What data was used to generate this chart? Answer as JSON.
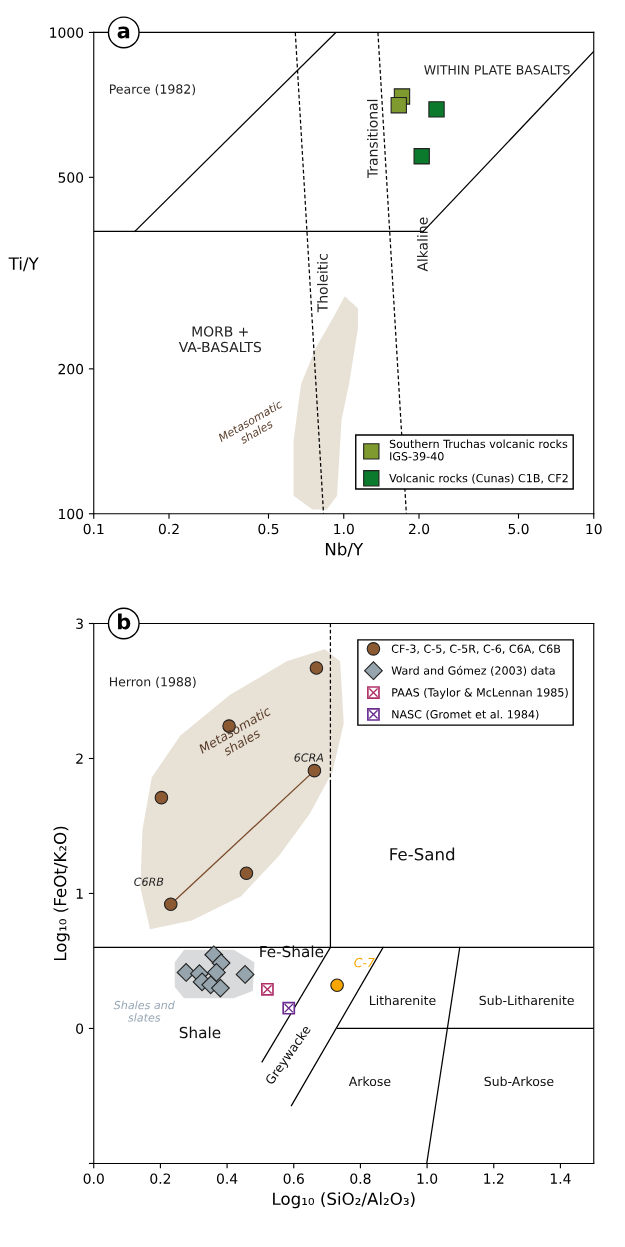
{
  "chart_data": [
    {
      "type": "scatter",
      "title": "a",
      "xlabel": "Nb/Y",
      "ylabel": "Ti/Y",
      "log": "xy",
      "xlim": [
        0.1,
        10
      ],
      "ylim": [
        100,
        1000
      ],
      "xticks": [
        0.1,
        0.2,
        0.5,
        {
          "value": 1,
          "label": "1.0"
        },
        {
          "value": 2,
          "label": "2.0"
        },
        {
          "value": 5,
          "label": "5.0"
        },
        10
      ],
      "yticks": [
        100,
        200,
        500,
        1000
      ],
      "grid": false,
      "legend": "bottom right",
      "annotations": [
        "Pearce (1982)",
        "WITHIN PLATE BASALTS",
        "Transitional",
        "Tholeitic",
        "Alkaline",
        "MORB +\nVA-BASALTS",
        "Metasomatic\nshales"
      ],
      "series": [
        {
          "type": "line",
          "color": "#000000",
          "line_style": "solid",
          "x": [
            0.1,
            2.08
          ],
          "values": [
            386,
            386
          ]
        },
        {
          "type": "line",
          "color": "#000000",
          "line_style": "solid",
          "x": [
            0.146,
            0.93
          ],
          "values": [
            386,
            1000
          ]
        },
        {
          "type": "line",
          "color": "#000000",
          "line_style": "solid",
          "x": [
            2.08,
            10
          ],
          "values": [
            386,
            913
          ]
        },
        {
          "type": "line",
          "color": "#000000",
          "line_style": "dashed",
          "x": [
            0.64,
            0.83
          ],
          "values": [
            1000,
            100
          ]
        },
        {
          "type": "line",
          "color": "#000000",
          "line_style": "dashed",
          "x": [
            1.37,
            1.78
          ],
          "values": [
            1000,
            100
          ]
        },
        {
          "marker": "square",
          "name": "Southern Truchas volcanic rocks\nIGS-39-40",
          "color": "#7f9a2e",
          "x": [
            1.71,
            1.66
          ],
          "values": [
            736,
            706
          ]
        },
        {
          "marker": "square",
          "name": "Volcanic rocks (Cunas) C1B, CF2",
          "color": "#0b7a2c",
          "x": [
            2.35,
            2.05
          ],
          "values": [
            692,
            553
          ]
        }
      ]
    },
    {
      "type": "scatter",
      "title": "b",
      "xlabel": "Log₁₀ (SiO₂/Al₂O₃)",
      "ylabel": "Log₁₀ (FeOt/K₂O)",
      "xlim": [
        0,
        1.5
      ],
      "ylim": [
        -1,
        3
      ],
      "xticks": [
        {
          "value": 0,
          "label": "0.0"
        },
        {
          "value": 0.2,
          "label": "0.2"
        },
        {
          "value": 0.4,
          "label": "0.4"
        },
        {
          "value": 0.6,
          "label": "0.6"
        },
        {
          "value": 0.8,
          "label": "0.8"
        },
        {
          "value": 1,
          "label": "1.0"
        },
        {
          "value": 1.2,
          "label": "1.2"
        },
        {
          "value": 1.4,
          "label": "1.4"
        }
      ],
      "yticks": [
        {
          "value": -1,
          "label": null
        },
        0,
        1,
        2,
        3
      ],
      "grid": false,
      "legend": "top right",
      "annotations": [
        "Herron (1988)",
        "Metasomatic\nshales",
        "6CRA",
        "C6RB",
        "Fe-Shale",
        "Fe-Sand",
        "C-7",
        "Shales and\nslates",
        "Shale",
        "Greywacke",
        "Litharenite",
        "Sub-Litharenite",
        "Arkose",
        "Sub-Arkose"
      ],
      "series": [
        {
          "type": "line",
          "color": "#000000",
          "line_style": "dashed",
          "x": [
            0.71,
            0.71
          ],
          "values": [
            3,
            1.83
          ]
        },
        {
          "type": "line",
          "color": "#000000",
          "line_style": "solid",
          "x": [
            0.71,
            0.71
          ],
          "values": [
            1.83,
            0.6
          ]
        },
        {
          "type": "line",
          "color": "#000000",
          "line_style": "solid",
          "x": [
            0,
            1.5
          ],
          "values": [
            0.6,
            0.6
          ]
        },
        {
          "type": "line",
          "color": "#000000",
          "line_style": "solid",
          "x": [
            0.71,
            0.505
          ],
          "values": [
            0.6,
            -0.247
          ]
        },
        {
          "type": "line",
          "color": "#000000",
          "line_style": "solid",
          "x": [
            0.868,
            0.593
          ],
          "values": [
            0.6,
            -0.571
          ]
        },
        {
          "type": "line",
          "color": "#000000",
          "line_style": "solid",
          "x": [
            0.731,
            1.5
          ],
          "values": [
            0,
            0
          ]
        },
        {
          "type": "line",
          "color": "#000000",
          "line_style": "solid",
          "x": [
            1.098,
            0.999
          ],
          "values": [
            0.6,
            -1
          ]
        },
        {
          "type": "line",
          "color": "#7a4a2a",
          "line_style": "solid",
          "x": [
            0.662,
            0.231
          ],
          "values": [
            1.91,
            0.92
          ]
        },
        {
          "marker": "circle",
          "name": "CF-3, C-5, C-5R, C-6, C6A, C6B",
          "color": "#8b5a33",
          "x": [
            0.668,
            0.406,
            0.203,
            0.662,
            0.458,
            0.231
          ],
          "values": [
            2.67,
            2.24,
            1.71,
            1.91,
            1.15,
            0.92
          ]
        },
        {
          "marker": "diamond",
          "name": "Ward and Gómez (2003) data",
          "color": "#96a4ad",
          "x": [
            0.277,
            0.317,
            0.325,
            0.36,
            0.382,
            0.368,
            0.351,
            0.38,
            0.454
          ],
          "values": [
            0.415,
            0.406,
            0.345,
            0.546,
            0.485,
            0.415,
            0.323,
            0.299,
            0.4
          ]
        },
        {
          "marker": "square",
          "name": "PAAS (Taylor & McLennan 1985)",
          "color": "#b0306a",
          "x": [
            0.521
          ],
          "values": [
            0.29
          ]
        },
        {
          "marker": "square",
          "name": "NASC (Gromet et al. 1984)",
          "color": "#6a2c91",
          "x": [
            0.585
          ],
          "values": [
            0.15
          ]
        },
        {
          "marker": "circle",
          "color": "#f7a600",
          "x": [
            0.73
          ],
          "values": [
            0.32
          ]
        }
      ]
    }
  ]
}
